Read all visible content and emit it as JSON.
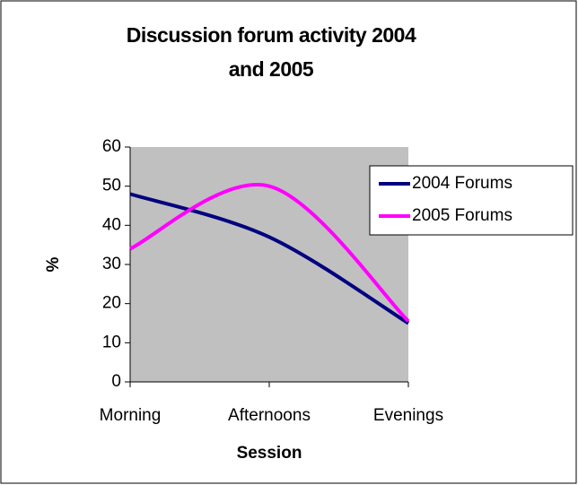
{
  "chart_data": {
    "type": "line",
    "title": "Discussion forum activity 2004 and 2005",
    "x_label": "Session",
    "y_label": "%",
    "categories": [
      "Morning",
      "Afternoons",
      "Evenings"
    ],
    "series": [
      {
        "name": "2004 Forums",
        "color": "#000080",
        "values": [
          48,
          37,
          15
        ]
      },
      {
        "name": "2005 Forums",
        "color": "#ff00ff",
        "values": [
          34,
          50,
          15.5
        ]
      }
    ],
    "ylim": [
      0,
      60
    ],
    "yticks": [
      0,
      10,
      20,
      30,
      40,
      50,
      60
    ],
    "smooth": true,
    "plot_background": "#c0c0c0",
    "legend": "right"
  }
}
